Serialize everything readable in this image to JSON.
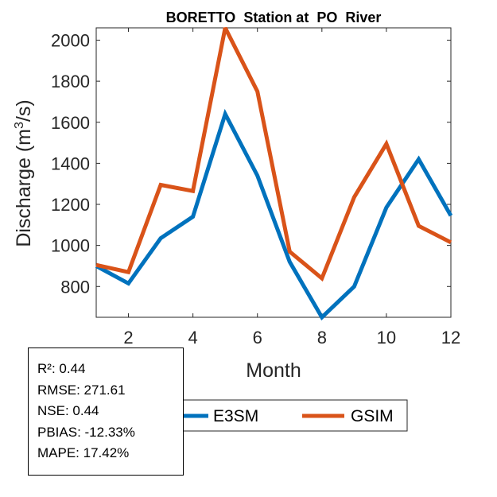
{
  "chart_data": {
    "type": "line",
    "title": "BORETTO  Station at  PO  River",
    "xlabel": "Month",
    "ylabel_main": "Discharge (m",
    "ylabel_sup": "3",
    "ylabel_end": "/s)",
    "xlim": [
      1,
      12
    ],
    "ylim": [
      650,
      2060
    ],
    "xticks": [
      2,
      4,
      6,
      8,
      10,
      12
    ],
    "yticks": [
      800,
      1000,
      1200,
      1400,
      1600,
      1800,
      2000
    ],
    "grid": false,
    "x": [
      1,
      2,
      3,
      4,
      5,
      6,
      7,
      8,
      9,
      10,
      11,
      12
    ],
    "series": [
      {
        "name": "E3SM",
        "color": "#0072BD",
        "values": [
          900,
          815,
          1035,
          1140,
          1640,
          1340,
          920,
          650,
          800,
          1185,
          1420,
          1145
        ]
      },
      {
        "name": "GSIM",
        "color": "#D95319",
        "values": [
          905,
          870,
          1295,
          1265,
          2060,
          1750,
          970,
          840,
          1235,
          1495,
          1095,
          1015
        ]
      }
    ],
    "legend_position": "bottom"
  },
  "stats": [
    "R²: 0.44",
    "RMSE: 271.61",
    "NSE: 0.44",
    "PBIAS: -12.33%",
    "MAPE: 17.42%"
  ]
}
